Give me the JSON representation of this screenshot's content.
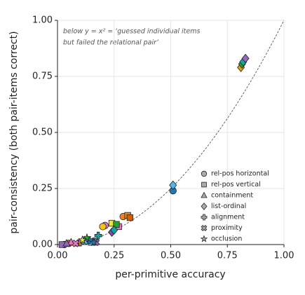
{
  "chart_data": {
    "type": "scatter",
    "xlabel": "per-primitive accuracy",
    "ylabel": "pair-consistency (both pair-items correct)",
    "annotation": [
      "below y = x² = ‘guessed individual items",
      "but failed the relational pair’"
    ],
    "xlim": [
      0,
      1
    ],
    "ylim": [
      0,
      1
    ],
    "xticks": [
      {
        "value": 0,
        "label": "0.00"
      },
      {
        "value": 0.25,
        "label": "0.25"
      },
      {
        "value": 0.5,
        "label": "0.50"
      },
      {
        "value": 0.75,
        "label": "0.75"
      },
      {
        "value": 1,
        "label": "1.00"
      }
    ],
    "yticks": [
      {
        "value": 0,
        "label": "0.00"
      },
      {
        "value": 0.25,
        "label": "0.25"
      },
      {
        "value": 0.5,
        "label": "0.50"
      },
      {
        "value": 0.75,
        "label": "0.75"
      },
      {
        "value": 1,
        "label": "1.00"
      }
    ],
    "grid": true,
    "legend": "lower right",
    "legend_color": "#aaaaaa",
    "series": [
      {
        "name": "rel-pos horizontal",
        "marker": "circle",
        "x": [
          0.51,
          0.29,
          0.21,
          0.2,
          0.26,
          0.16,
          0.03,
          0.05
        ],
        "values": [
          0.24,
          0.125,
          0.085,
          0.08,
          0.08,
          0.015,
          0.0,
          0.005
        ],
        "colors": [
          "#1f77b4",
          "#e6862a",
          "#e377c2",
          "#f0c419",
          "#17a2a2",
          "#8c9ec9",
          "#9467bd",
          "#d55e00"
        ]
      },
      {
        "name": "rel-pos vertical",
        "marker": "square",
        "x": [
          0.31,
          0.32,
          0.24,
          0.27,
          0.26,
          0.15,
          0.02
        ],
        "values": [
          0.13,
          0.12,
          0.095,
          0.08,
          0.09,
          0.01,
          0.0
        ],
        "colors": [
          "#e6862a",
          "#d55e00",
          "#f0e442",
          "#e377c2",
          "#2ca02c",
          "#56b4e9",
          "#9467bd"
        ]
      },
      {
        "name": "containment",
        "marker": "triangle",
        "x": [
          0.06,
          0.09,
          0.12,
          0.04
        ],
        "values": [
          0.01,
          0.005,
          0.02,
          0.005
        ],
        "colors": [
          "#e377c2",
          "#e6862a",
          "#2ca02c",
          "#9467bd"
        ]
      },
      {
        "name": "list-ordinal",
        "marker": "diamond",
        "x": [
          0.81,
          0.815,
          0.82,
          0.83,
          0.51,
          0.24,
          0.25
        ],
        "values": [
          0.79,
          0.805,
          0.815,
          0.83,
          0.265,
          0.055,
          0.065
        ],
        "colors": [
          "#e69f00",
          "#2ca02c",
          "#17a2a2",
          "#9467bd",
          "#56b4e9",
          "#7b4ea3",
          "#17a2a2"
        ]
      },
      {
        "name": "alignment",
        "marker": "plus",
        "x": [
          0.14,
          0.18,
          0.1
        ],
        "values": [
          0.02,
          0.04,
          0.01
        ],
        "colors": [
          "#1f77b4",
          "#17a2a2",
          "#e6862a"
        ]
      },
      {
        "name": "proximity",
        "marker": "cross",
        "x": [
          0.17,
          0.12,
          0.08
        ],
        "values": [
          0.01,
          0.015,
          0.005
        ],
        "colors": [
          "#9467bd",
          "#56b4e9",
          "#e377c2"
        ]
      },
      {
        "name": "occlusion",
        "marker": "star",
        "x": [
          0.13,
          0.11,
          0.16
        ],
        "values": [
          0.03,
          0.02,
          0.01
        ],
        "colors": [
          "#2ca02c",
          "#f0e442",
          "#1f77b4"
        ]
      }
    ]
  }
}
